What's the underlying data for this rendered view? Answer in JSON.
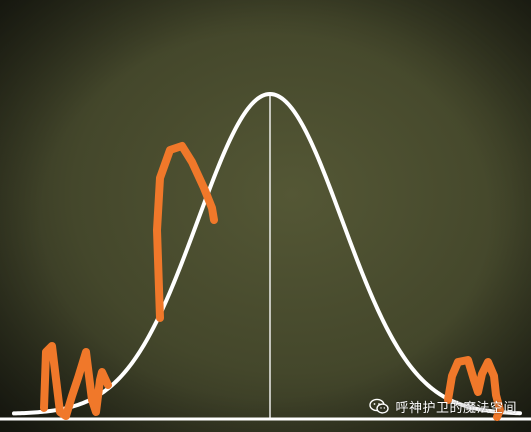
{
  "diagram": {
    "type": "bell-curve",
    "background": "#3e4128",
    "curve_color": "#ffffff",
    "highlight_color": "#f0782a",
    "mean_line": true,
    "baseline": true,
    "scribbles": [
      "left-tail-zigzag",
      "left-slope-hook",
      "right-tail-zigzag"
    ]
  },
  "watermark": {
    "text": "呼神护卫的魔法空间",
    "icon": "wechat-icon"
  }
}
